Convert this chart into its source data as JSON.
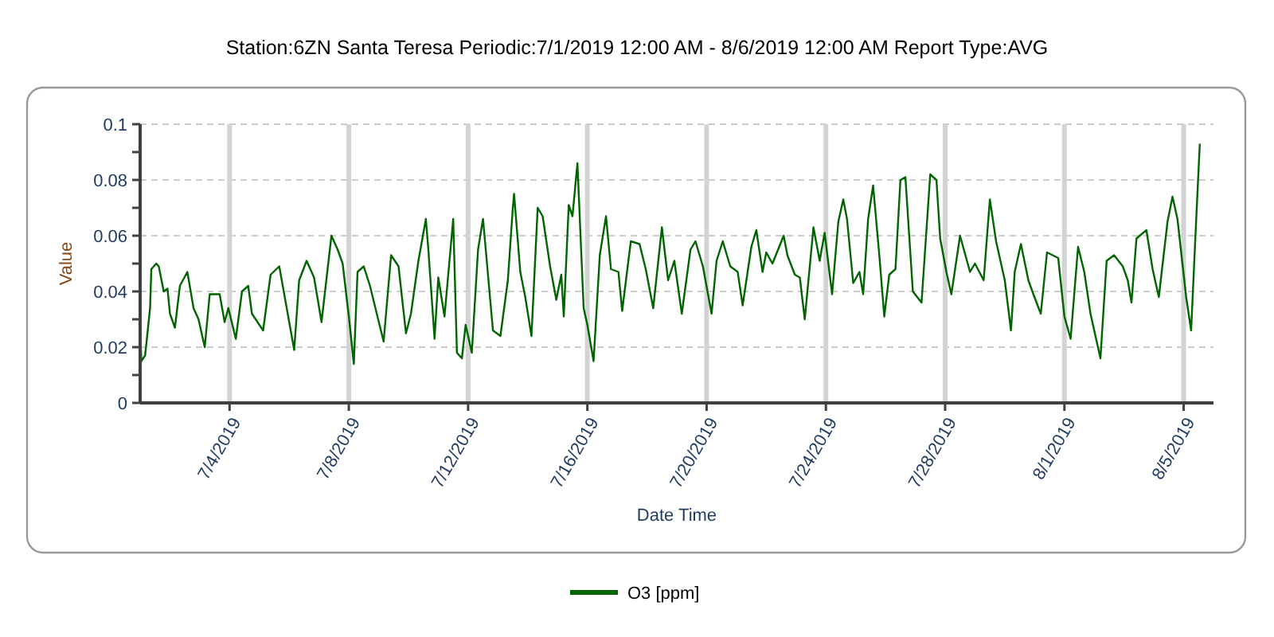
{
  "chart_data": {
    "type": "line",
    "title": "Station:6ZN Santa Teresa Periodic:7/1/2019 12:00 AM - 8/6/2019 12:00 AM Report Type:AVG",
    "xlabel": "Date Time",
    "ylabel": "Value",
    "xlim": [
      "2019-07-01",
      "2019-08-06"
    ],
    "xticks": [
      {
        "value": "2019-07-04",
        "label": "7/4/2019"
      },
      {
        "value": "2019-07-08",
        "label": "7/8/2019"
      },
      {
        "value": "2019-07-12",
        "label": "7/12/2019"
      },
      {
        "value": "2019-07-16",
        "label": "7/16/2019"
      },
      {
        "value": "2019-07-20",
        "label": "7/20/2019"
      },
      {
        "value": "2019-07-24",
        "label": "7/24/2019"
      },
      {
        "value": "2019-07-28",
        "label": "7/28/2019"
      },
      {
        "value": "2019-08-01",
        "label": "8/1/2019"
      },
      {
        "value": "2019-08-05",
        "label": "8/5/2019"
      }
    ],
    "ylim": [
      0,
      0.1
    ],
    "yticks": [
      0,
      {
        "value": 0.01,
        "label": null
      },
      0.02,
      {
        "value": 0.03,
        "label": null
      },
      0.04,
      {
        "value": 0.05,
        "label": null
      },
      0.06,
      {
        "value": 0.07,
        "label": null
      },
      0.08,
      {
        "value": 0.09,
        "label": null
      },
      0.1
    ],
    "grid": true,
    "legend": "bottom",
    "marker": "none",
    "line_style": "solid",
    "series": [
      {
        "name": "O3 [ppm]",
        "color": "#006400",
        "x": [
          "2019-07-01T00:00",
          "2019-07-01T01:00",
          "2019-07-01T04:00",
          "2019-07-01T08:00",
          "2019-07-01T09:00",
          "2019-07-01T13:00",
          "2019-07-01T15:00",
          "2019-07-01T19:00",
          "2019-07-01T22:00",
          "2019-07-02T00:00",
          "2019-07-02T04:00",
          "2019-07-02T08:00",
          "2019-07-02T14:00",
          "2019-07-02T19:00",
          "2019-07-02T23:00",
          "2019-07-03T04:00",
          "2019-07-03T08:00",
          "2019-07-03T16:00",
          "2019-07-03T20:00",
          "2019-07-03T23:00",
          "2019-07-04T05:00",
          "2019-07-04T10:00",
          "2019-07-04T15:00",
          "2019-07-04T18:00",
          "2019-07-05T03:00",
          "2019-07-05T09:00",
          "2019-07-05T16:00",
          "2019-07-05T20:00",
          "2019-07-06T04:00",
          "2019-07-06T08:00",
          "2019-07-06T14:00",
          "2019-07-06T20:00",
          "2019-07-07T02:00",
          "2019-07-07T10:00",
          "2019-07-07T15:00",
          "2019-07-07T19:00",
          "2019-07-08T00:00",
          "2019-07-08T04:00",
          "2019-07-08T07:00",
          "2019-07-08T12:00",
          "2019-07-08T17:00",
          "2019-07-09T04:00",
          "2019-07-09T10:00",
          "2019-07-09T16:00",
          "2019-07-09T22:00",
          "2019-07-10T02:00",
          "2019-07-10T08:00",
          "2019-07-10T14:00",
          "2019-07-10T16:00",
          "2019-07-10T21:00",
          "2019-07-11T00:00",
          "2019-07-11T05:00",
          "2019-07-11T12:00",
          "2019-07-11T15:00",
          "2019-07-11T19:00",
          "2019-07-11T22:00",
          "2019-07-12T03:00",
          "2019-07-12T08:00",
          "2019-07-12T12:00",
          "2019-07-12T20:00",
          "2019-07-13T02:00",
          "2019-07-13T08:00",
          "2019-07-13T12:00",
          "2019-07-13T13:00",
          "2019-07-13T18:00",
          "2019-07-13T22:00",
          "2019-07-14T03:00",
          "2019-07-14T08:00",
          "2019-07-14T12:00",
          "2019-07-14T18:00",
          "2019-07-14T23:00",
          "2019-07-15T03:00",
          "2019-07-15T05:00",
          "2019-07-15T09:00",
          "2019-07-15T12:00",
          "2019-07-15T16:00",
          "2019-07-15T21:00",
          "2019-07-16T00:00",
          "2019-07-16T05:00",
          "2019-07-16T10:00",
          "2019-07-16T15:00",
          "2019-07-16T19:00",
          "2019-07-17T01:00",
          "2019-07-17T04:00",
          "2019-07-17T11:00",
          "2019-07-17T18:00",
          "2019-07-17T23:00",
          "2019-07-18T05:00",
          "2019-07-18T12:00",
          "2019-07-18T17:00",
          "2019-07-18T22:00",
          "2019-07-19T04:00",
          "2019-07-19T11:00",
          "2019-07-19T15:00",
          "2019-07-19T21:00",
          "2019-07-20T04:00",
          "2019-07-20T08:00",
          "2019-07-20T13:00",
          "2019-07-20T19:00",
          "2019-07-21T01:00",
          "2019-07-21T05:00",
          "2019-07-21T12:00",
          "2019-07-21T16:00",
          "2019-07-21T21:00",
          "2019-07-22T00:00",
          "2019-07-22T05:00",
          "2019-07-22T14:00",
          "2019-07-22T17:00",
          "2019-07-22T23:00",
          "2019-07-23T03:00",
          "2019-07-23T07:00",
          "2019-07-23T14:00",
          "2019-07-23T19:00",
          "2019-07-23T23:00",
          "2019-07-24T05:00",
          "2019-07-24T10:00",
          "2019-07-24T14:00",
          "2019-07-24T17:00",
          "2019-07-24T22:00",
          "2019-07-25T03:00",
          "2019-07-25T06:00",
          "2019-07-25T10:00",
          "2019-07-25T14:00",
          "2019-07-25T19:00",
          "2019-07-25T23:00",
          "2019-07-26T03:00",
          "2019-07-26T08:00",
          "2019-07-26T12:00",
          "2019-07-26T16:00",
          "2019-07-26T22:00",
          "2019-07-27T05:00",
          "2019-07-27T12:00",
          "2019-07-27T17:00",
          "2019-07-27T20:00",
          "2019-07-28T01:00",
          "2019-07-28T05:00",
          "2019-07-28T12:00",
          "2019-07-28T20:00",
          "2019-07-29T00:00",
          "2019-07-29T07:00",
          "2019-07-29T12:00",
          "2019-07-29T17:00",
          "2019-07-30T00:00",
          "2019-07-30T05:00",
          "2019-07-30T08:00",
          "2019-07-30T13:00",
          "2019-07-30T19:00",
          "2019-07-30T23:00",
          "2019-07-31T05:00",
          "2019-07-31T10:00",
          "2019-07-31T19:00",
          "2019-08-01T00:00",
          "2019-08-01T05:00",
          "2019-08-01T11:00",
          "2019-08-01T16:00",
          "2019-08-01T21:00",
          "2019-08-02T05:00",
          "2019-08-02T10:00",
          "2019-08-02T16:00",
          "2019-08-02T23:00",
          "2019-08-03T03:00",
          "2019-08-03T06:00",
          "2019-08-03T10:00",
          "2019-08-03T18:00",
          "2019-08-03T23:00",
          "2019-08-04T04:00",
          "2019-08-04T11:00",
          "2019-08-04T15:00",
          "2019-08-04T19:00",
          "2019-08-05T02:00",
          "2019-08-05T06:00",
          "2019-08-05T10:00",
          "2019-08-05T13:00"
        ],
        "values": [
          0.026,
          0.015,
          0.017,
          0.034,
          0.048,
          0.05,
          0.049,
          0.04,
          0.041,
          0.032,
          0.027,
          0.042,
          0.047,
          0.034,
          0.03,
          0.02,
          0.039,
          0.039,
          0.029,
          0.034,
          0.023,
          0.04,
          0.042,
          0.032,
          0.026,
          0.046,
          0.049,
          0.039,
          0.019,
          0.044,
          0.051,
          0.045,
          0.029,
          0.06,
          0.055,
          0.05,
          0.031,
          0.014,
          0.047,
          0.049,
          0.042,
          0.022,
          0.053,
          0.049,
          0.025,
          0.032,
          0.051,
          0.066,
          0.055,
          0.023,
          0.045,
          0.031,
          0.066,
          0.018,
          0.016,
          0.028,
          0.018,
          0.055,
          0.066,
          0.026,
          0.024,
          0.044,
          0.07,
          0.075,
          0.047,
          0.038,
          0.024,
          0.07,
          0.067,
          0.049,
          0.037,
          0.046,
          0.031,
          0.071,
          0.067,
          0.086,
          0.034,
          0.028,
          0.015,
          0.053,
          0.067,
          0.048,
          0.047,
          0.033,
          0.058,
          0.057,
          0.048,
          0.034,
          0.063,
          0.044,
          0.051,
          0.032,
          0.055,
          0.058,
          0.049,
          0.032,
          0.051,
          0.058,
          0.049,
          0.047,
          0.035,
          0.056,
          0.062,
          0.047,
          0.054,
          0.05,
          0.06,
          0.053,
          0.046,
          0.045,
          0.03,
          0.063,
          0.051,
          0.061,
          0.039,
          0.065,
          0.073,
          0.066,
          0.043,
          0.047,
          0.039,
          0.066,
          0.078,
          0.053,
          0.031,
          0.046,
          0.048,
          0.08,
          0.081,
          0.04,
          0.036,
          0.082,
          0.08,
          0.059,
          0.047,
          0.039,
          0.06,
          0.047,
          0.05,
          0.044,
          0.073,
          0.058,
          0.044,
          0.026,
          0.047,
          0.057,
          0.044,
          0.039,
          0.032,
          0.054,
          0.052,
          0.031,
          0.023,
          0.056,
          0.047,
          0.032,
          0.016,
          0.051,
          0.053,
          0.049,
          0.044,
          0.036,
          0.059,
          0.062,
          0.048,
          0.038,
          0.065,
          0.074,
          0.066,
          0.038,
          0.026,
          0.065,
          0.093
        ]
      }
    ]
  }
}
